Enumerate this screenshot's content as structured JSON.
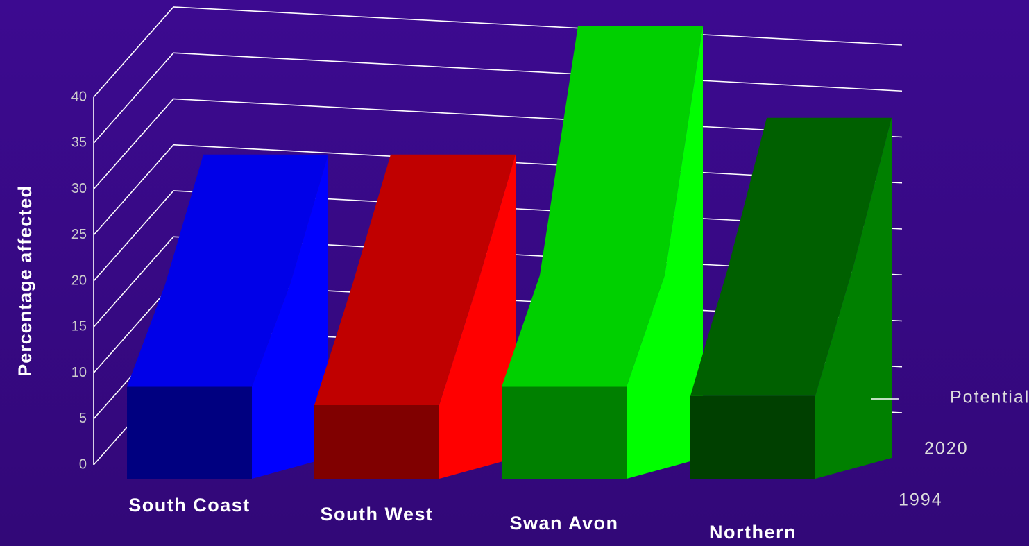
{
  "chart_data": {
    "type": "ribbon3d",
    "y_label": "Percentage affected",
    "categories": [
      "South Coast",
      "South West",
      "Swan Avon",
      "Northern"
    ],
    "series": [
      {
        "name": "1994",
        "values": [
          10,
          8,
          10,
          9
        ]
      },
      {
        "name": "2020",
        "values": [
          20,
          20,
          21,
          22
        ]
      },
      {
        "name": "Potential",
        "values": [
          33,
          33,
          47,
          37
        ]
      }
    ],
    "colors": [
      {
        "front": "#000080",
        "top": "#0000e8",
        "side": "#0000ff"
      },
      {
        "front": "#800000",
        "top": "#c00000",
        "side": "#ff0000"
      },
      {
        "front": "#008000",
        "top": "#00d000",
        "side": "#00ff00"
      },
      {
        "front": "#004000",
        "top": "#006000",
        "side": "#008000"
      }
    ],
    "ylim": [
      0,
      50
    ],
    "yticks": [
      0,
      5,
      10,
      15,
      20,
      25,
      30,
      35,
      40
    ],
    "grid": true
  }
}
